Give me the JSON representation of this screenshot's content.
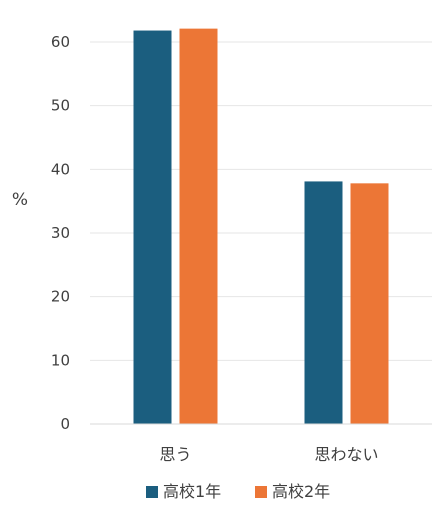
{
  "chart_data": {
    "type": "bar",
    "title": "",
    "xlabel": "",
    "ylabel": "%",
    "categories": [
      "思う",
      "思わない"
    ],
    "series": [
      {
        "name": "高校1年",
        "values": [
          61.8,
          38.1
        ],
        "color": "#1b5e7f"
      },
      {
        "name": "高校2年",
        "values": [
          62.1,
          37.8
        ],
        "color": "#ec7636"
      }
    ],
    "ylim": [
      0,
      60
    ],
    "yticks": [
      0,
      10,
      20,
      30,
      40,
      50,
      60
    ],
    "grid": true,
    "legend_position": "bottom"
  }
}
